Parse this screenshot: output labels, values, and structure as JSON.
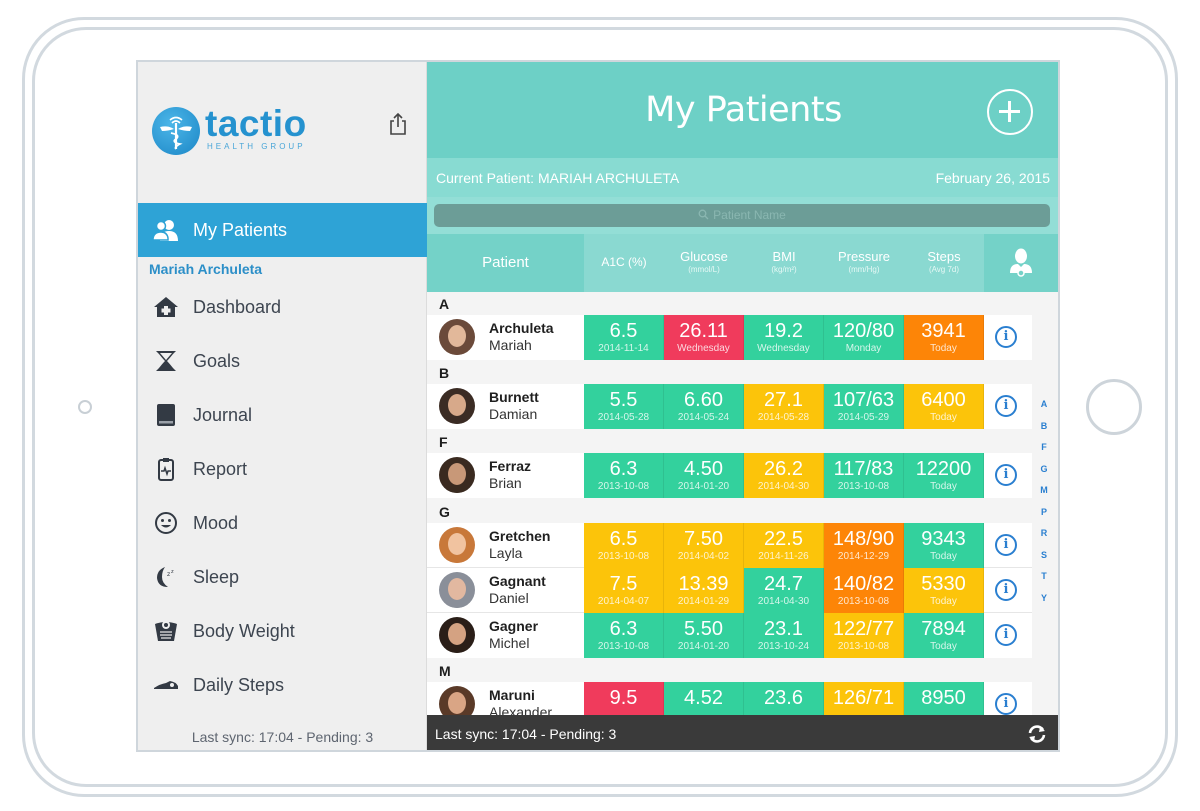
{
  "app": {
    "logo_word": "tactio",
    "logo_sub": "HEALTH GROUP",
    "title": "My Patients"
  },
  "sidebar": {
    "active_item": {
      "label": "My Patients",
      "icon": "patients-icon"
    },
    "current_patient": "Mariah Archuleta",
    "items": [
      {
        "label": "Dashboard",
        "icon": "home-medical-icon"
      },
      {
        "label": "Goals",
        "icon": "trophy-icon"
      },
      {
        "label": "Journal",
        "icon": "book-icon"
      },
      {
        "label": "Report",
        "icon": "clipboard-icon"
      },
      {
        "label": "Mood",
        "icon": "smiley-icon"
      },
      {
        "label": "Sleep",
        "icon": "moon-icon"
      },
      {
        "label": "Body Weight",
        "icon": "scale-icon"
      },
      {
        "label": "Daily Steps",
        "icon": "shoe-icon"
      }
    ],
    "sync_status": "Last sync: 17:04 - Pending: 3"
  },
  "infobar": {
    "current_patient": "Current Patient:  MARIAH ARCHULETA",
    "date": "February 26, 2015"
  },
  "search": {
    "placeholder": "Patient Name"
  },
  "table": {
    "columns": {
      "patient": "Patient",
      "a1c": "A1C (%)",
      "glucose": "Glucose",
      "glucose_unit": "(mmol/L)",
      "bmi": "BMI",
      "bmi_unit": "(kg/m²)",
      "pressure": "Pressure",
      "pressure_unit": "(mm/Hg)",
      "steps": "Steps",
      "steps_unit": "(Avg 7d)"
    },
    "sections": [
      "A",
      "B",
      "F",
      "G",
      "M"
    ],
    "status_colors": {
      "green": "#33d19d",
      "yellow": "#fcc40a",
      "orange": "#fd8507",
      "red": "#f03b5c"
    },
    "rows": [
      {
        "last": "Archuleta",
        "first": "Mariah",
        "cells": [
          [
            "6.5",
            "2014-11-14",
            "green"
          ],
          [
            "26.11",
            "Wednesday",
            "red"
          ],
          [
            "19.2",
            "Wednesday",
            "green"
          ],
          [
            "120/80",
            "Monday",
            "green"
          ],
          [
            "3941",
            "Today",
            "orange"
          ]
        ]
      },
      {
        "last": "Burnett",
        "first": "Damian",
        "cells": [
          [
            "5.5",
            "2014-05-28",
            "green"
          ],
          [
            "6.60",
            "2014-05-24",
            "green"
          ],
          [
            "27.1",
            "2014-05-28",
            "yellow"
          ],
          [
            "107/63",
            "2014-05-29",
            "green"
          ],
          [
            "6400",
            "Today",
            "yellow"
          ]
        ]
      },
      {
        "last": "Ferraz",
        "first": "Brian",
        "cells": [
          [
            "6.3",
            "2013-10-08",
            "green"
          ],
          [
            "4.50",
            "2014-01-20",
            "green"
          ],
          [
            "26.2",
            "2014-04-30",
            "yellow"
          ],
          [
            "117/83",
            "2013-10-08",
            "green"
          ],
          [
            "12200",
            "Today",
            "green"
          ]
        ]
      },
      {
        "last": "Gretchen",
        "first": "Layla",
        "cells": [
          [
            "6.5",
            "2013-10-08",
            "yellow"
          ],
          [
            "7.50",
            "2014-04-02",
            "yellow"
          ],
          [
            "22.5",
            "2014-11-26",
            "yellow"
          ],
          [
            "148/90",
            "2014-12-29",
            "orange"
          ],
          [
            "9343",
            "Today",
            "green"
          ]
        ]
      },
      {
        "last": "Gagnant",
        "first": "Daniel",
        "cells": [
          [
            "7.5",
            "2014-04-07",
            "yellow"
          ],
          [
            "13.39",
            "2014-01-29",
            "yellow"
          ],
          [
            "24.7",
            "2014-04-30",
            "green"
          ],
          [
            "140/82",
            "2013-10-08",
            "orange"
          ],
          [
            "5330",
            "Today",
            "yellow"
          ]
        ]
      },
      {
        "last": "Gagner",
        "first": "Michel",
        "cells": [
          [
            "6.3",
            "2013-10-08",
            "green"
          ],
          [
            "5.50",
            "2014-01-20",
            "green"
          ],
          [
            "23.1",
            "2013-10-24",
            "green"
          ],
          [
            "122/77",
            "2013-10-08",
            "yellow"
          ],
          [
            "7894",
            "Today",
            "green"
          ]
        ]
      },
      {
        "last": "Maruni",
        "first": "Alexander",
        "cells": [
          [
            "9.5",
            "",
            "red"
          ],
          [
            "4.52",
            "",
            "green"
          ],
          [
            "23.6",
            "",
            "green"
          ],
          [
            "126/71",
            "",
            "yellow"
          ],
          [
            "8950",
            "",
            "green"
          ]
        ]
      }
    ]
  },
  "alpha_index": [
    "A",
    "B",
    "F",
    "G",
    "M",
    "P",
    "R",
    "S",
    "T",
    "Y"
  ],
  "bottombar": {
    "sync_status": "Last sync: 17:04 - Pending: 3"
  }
}
